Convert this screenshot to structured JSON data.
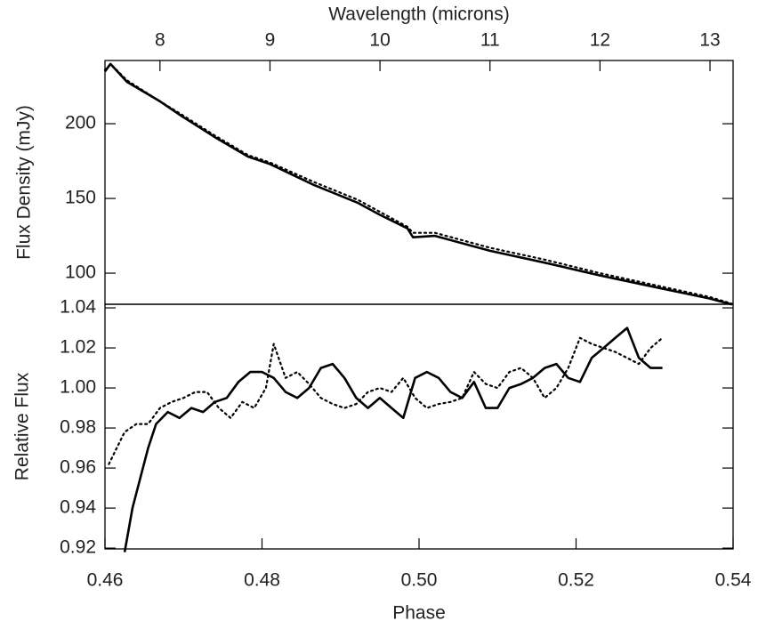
{
  "chart_data": [
    {
      "type": "line",
      "xlabel": "Wavelength (microns)",
      "ylabel": "Flux Density (mJy)",
      "xaxis_position": "top",
      "xlim": [
        7.5,
        13.21
      ],
      "xticks": [
        8,
        9,
        10,
        11,
        12,
        13
      ],
      "ylim": [
        79.2,
        242.3
      ],
      "yticks": [
        100,
        150,
        200
      ],
      "series": [
        {
          "color": "#000000",
          "dash": "solid",
          "x": [
            7.5,
            7.55,
            7.7,
            8.0,
            8.2,
            8.5,
            8.8,
            9.0,
            9.4,
            9.8,
            10.0,
            10.25,
            10.3,
            10.5,
            11,
            11.5,
            12,
            12.5,
            13,
            13.2
          ],
          "values": [
            235,
            240,
            228,
            215,
            205,
            191,
            178,
            173,
            159,
            147,
            139,
            130,
            124,
            125,
            115,
            107,
            98.5,
            90.7,
            83,
            79
          ]
        },
        {
          "color": "#000000",
          "dash": "dotted",
          "x": [
            7.5,
            7.55,
            7.7,
            8.0,
            8.2,
            8.5,
            8.8,
            9.0,
            9.4,
            9.8,
            10.0,
            10.25,
            10.3,
            10.5,
            11,
            11.5,
            12,
            12.5,
            13,
            13.2
          ],
          "values": [
            236,
            240,
            229,
            215,
            206,
            192,
            179,
            174,
            161,
            149,
            141,
            131,
            127,
            127,
            117,
            109,
            100,
            92,
            84,
            79.5
          ]
        }
      ]
    },
    {
      "type": "line",
      "xlabel": "Phase",
      "ylabel": "Relative Flux",
      "xaxis_position": "bottom",
      "xlim": [
        0.46,
        0.54
      ],
      "xticks": [
        0.46,
        0.48,
        {
          "value": 0.5,
          "label": "0.50"
        },
        0.52,
        0.54
      ],
      "ylim": [
        0.9196,
        1.0418
      ],
      "yticks": [
        0.92,
        0.94,
        0.96,
        0.98,
        {
          "value": 1,
          "label": "1.00"
        },
        1.02,
        1.04
      ],
      "series": [
        {
          "color": "#000000",
          "dash": "solid",
          "x": [
            0.4625,
            0.4635,
            0.4645,
            0.4655,
            0.4665,
            0.468,
            0.4695,
            0.471,
            0.4725,
            0.474,
            0.4755,
            0.477,
            0.4785,
            0.48,
            0.4815,
            0.483,
            0.4845,
            0.486,
            0.4875,
            0.489,
            0.4905,
            0.492,
            0.4935,
            0.495,
            0.4965,
            0.498,
            0.4995,
            0.501,
            0.5025,
            0.504,
            0.5055,
            0.507,
            0.5085,
            0.51,
            0.5115,
            0.513,
            0.5145,
            0.516,
            0.5175,
            0.519,
            0.5205,
            0.522,
            0.5235,
            0.525,
            0.5265,
            0.528,
            0.5295,
            0.531
          ],
          "values": [
            0.918,
            0.94,
            0.955,
            0.97,
            0.982,
            0.988,
            0.985,
            0.99,
            0.988,
            0.993,
            0.995,
            1.003,
            1.008,
            1.008,
            1.005,
            0.998,
            0.995,
            1.0,
            1.01,
            1.012,
            1.005,
            0.995,
            0.99,
            0.995,
            0.99,
            0.985,
            1.005,
            1.008,
            1.005,
            0.998,
            0.995,
            1.003,
            0.99,
            0.99,
            1.0,
            1.002,
            1.005,
            1.01,
            1.012,
            1.005,
            1.003,
            1.015,
            1.02,
            1.025,
            1.03,
            1.015,
            1.01,
            1.01
          ]
        },
        {
          "color": "#000000",
          "dash": "dotted",
          "x": [
            0.4605,
            0.4615,
            0.4625,
            0.464,
            0.4655,
            0.467,
            0.4685,
            0.47,
            0.4715,
            0.473,
            0.4745,
            0.476,
            0.4775,
            0.479,
            0.4805,
            0.4815,
            0.483,
            0.4845,
            0.486,
            0.4875,
            0.489,
            0.4905,
            0.492,
            0.4935,
            0.495,
            0.4965,
            0.498,
            0.4995,
            0.501,
            0.5025,
            0.504,
            0.5055,
            0.507,
            0.5085,
            0.51,
            0.5115,
            0.513,
            0.5145,
            0.516,
            0.5175,
            0.519,
            0.5205,
            0.522,
            0.5235,
            0.525,
            0.5265,
            0.528,
            0.5295,
            0.531
          ],
          "values": [
            0.962,
            0.97,
            0.978,
            0.982,
            0.982,
            0.99,
            0.993,
            0.995,
            0.998,
            0.998,
            0.99,
            0.985,
            0.993,
            0.99,
            1.0,
            1.022,
            1.005,
            1.008,
            1.002,
            0.995,
            0.992,
            0.99,
            0.992,
            0.998,
            1.0,
            0.998,
            1.005,
            0.995,
            0.99,
            0.992,
            0.993,
            0.995,
            1.008,
            1.002,
            1.0,
            1.008,
            1.01,
            1.005,
            0.995,
            1.0,
            1.01,
            1.025,
            1.022,
            1.02,
            1.018,
            1.015,
            1.012,
            1.02,
            1.025
          ]
        }
      ]
    }
  ]
}
